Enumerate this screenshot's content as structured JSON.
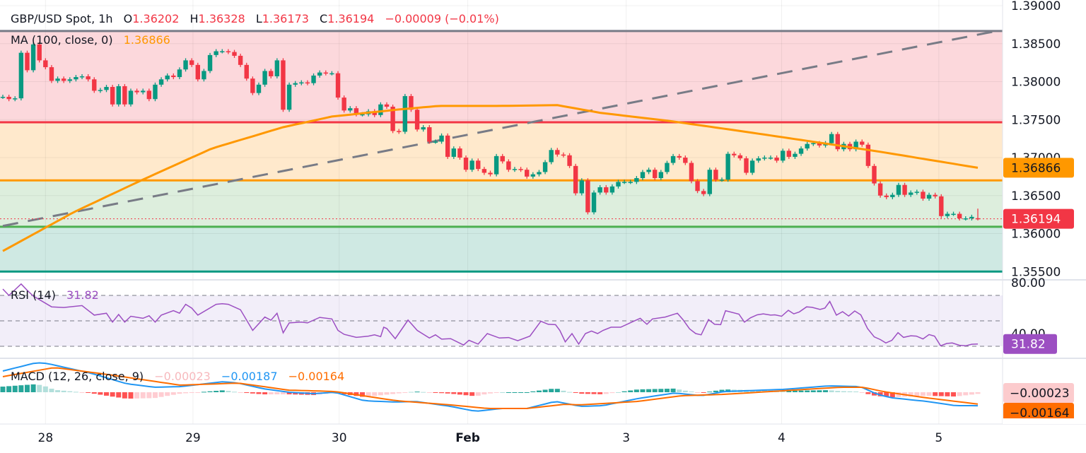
{
  "header": {
    "symbol": "GBP/USD Spot, 1h",
    "o_label": "O",
    "o": "1.36202",
    "h_label": "H",
    "h": "1.36328",
    "l_label": "L",
    "l": "1.36173",
    "c_label": "C",
    "c": "1.36194",
    "change": "−0.00009 (−0.01%)"
  },
  "ma_legend": {
    "label": "MA (100, close, 0)",
    "value": "1.36866"
  },
  "rsi_legend": {
    "label": "RSI (14)",
    "value": "31.82"
  },
  "macd_legend": {
    "label": "MACD (12, 26, close, 9)",
    "hist": "−0.00023",
    "macd": "−0.00187",
    "signal": "−0.00164"
  },
  "colors": {
    "up": "#089981",
    "down": "#f23645",
    "ma": "#ff9800",
    "trendline": "#787b86",
    "rsi": "#9c4fc2",
    "macd": "#2196f3",
    "signal": "#ff6d00",
    "zone_top": "#fcd8dc",
    "zone_mid_high": "#ffe9cc",
    "zone_mid_low": "#ddeedd",
    "zone_bottom": "#cfe9e3"
  },
  "chart_data": [
    {
      "type": "candlestick",
      "ylim": [
        1.353,
        1.3907
      ],
      "yticks": [
        "1.39000",
        "1.38500",
        "1.38000",
        "1.37500",
        "1.37000",
        "1.36500",
        "1.36000",
        "1.35500"
      ],
      "xticks": [
        {
          "label": "28",
          "index": 7
        },
        {
          "label": "29",
          "index": 31.2
        },
        {
          "label": "30",
          "index": 55.2
        },
        {
          "label": "Feb",
          "index": 76.3,
          "bold": true
        },
        {
          "label": "3",
          "index": 102.3
        },
        {
          "label": "4",
          "index": 127.8
        },
        {
          "label": "5",
          "index": 153.6
        }
      ],
      "closes": [
        1.378,
        1.3777,
        1.3778,
        1.3838,
        1.3815,
        1.3849,
        1.3828,
        1.3819,
        1.3801,
        1.3804,
        1.3801,
        1.3803,
        1.3806,
        1.3807,
        1.3803,
        1.3788,
        1.3789,
        1.3793,
        1.377,
        1.3794,
        1.377,
        1.3788,
        1.3786,
        1.3788,
        1.3777,
        1.3796,
        1.3803,
        1.3808,
        1.3806,
        1.3816,
        1.3828,
        1.3822,
        1.3803,
        1.3814,
        1.3835,
        1.384,
        1.384,
        1.3839,
        1.3834,
        1.3822,
        1.3804,
        1.3785,
        1.3796,
        1.3814,
        1.3807,
        1.3828,
        1.3763,
        1.3796,
        1.3798,
        1.3799,
        1.3798,
        1.3808,
        1.3812,
        1.3811,
        1.3811,
        1.3779,
        1.3762,
        1.3765,
        1.3757,
        1.3757,
        1.3761,
        1.3756,
        1.377,
        1.3767,
        1.3735,
        1.3734,
        1.3781,
        1.3763,
        1.3737,
        1.374,
        1.3721,
        1.3721,
        1.3729,
        1.3701,
        1.3712,
        1.37,
        1.3684,
        1.3696,
        1.3685,
        1.368,
        1.3678,
        1.3702,
        1.3695,
        1.3684,
        1.3685,
        1.3684,
        1.3675,
        1.3678,
        1.3681,
        1.3694,
        1.371,
        1.3704,
        1.3703,
        1.3689,
        1.3653,
        1.367,
        1.3628,
        1.3654,
        1.3661,
        1.3654,
        1.3662,
        1.3668,
        1.3668,
        1.3668,
        1.3673,
        1.3681,
        1.3684,
        1.3673,
        1.3681,
        1.3693,
        1.3702,
        1.37,
        1.3693,
        1.3669,
        1.3656,
        1.3652,
        1.3684,
        1.3671,
        1.3671,
        1.3705,
        1.3703,
        1.3699,
        1.368,
        1.3696,
        1.3699,
        1.37,
        1.37,
        1.3696,
        1.3709,
        1.3701,
        1.3705,
        1.3712,
        1.3718,
        1.3719,
        1.3716,
        1.3719,
        1.3731,
        1.3711,
        1.3718,
        1.3711,
        1.3721,
        1.3717,
        1.3689,
        1.3666,
        1.365,
        1.3648,
        1.3651,
        1.3664,
        1.3651,
        1.3654,
        1.3655,
        1.3646,
        1.3651,
        1.3649,
        1.3623,
        1.3626,
        1.3626,
        1.362,
        1.362,
        1.3622,
        1.36194
      ],
      "last_candle": {
        "open": 1.36202,
        "high": 1.36328,
        "low": 1.36173,
        "close": 1.36194
      },
      "ma100": [
        [
          0,
          1.3577
        ],
        [
          11.6,
          1.3628
        ],
        [
          22.7,
          1.367
        ],
        [
          34.3,
          1.3712
        ],
        [
          46,
          1.374
        ],
        [
          54,
          1.3754
        ],
        [
          64.5,
          1.3763
        ],
        [
          71.5,
          1.3768
        ],
        [
          81,
          1.3768
        ],
        [
          91,
          1.3769
        ],
        [
          98,
          1.3759
        ],
        [
          109.6,
          1.3748
        ],
        [
          121,
          1.3735
        ],
        [
          132.9,
          1.3721
        ],
        [
          144.5,
          1.3707
        ],
        [
          160,
          1.36866
        ]
      ],
      "trendline": [
        [
          0,
          1.361
        ],
        [
          163,
          1.38665
        ]
      ],
      "levels": [
        {
          "price": 1.38666,
          "color": "#787b86"
        },
        {
          "price": 1.37465,
          "color": "#f23645"
        },
        {
          "price": 1.367,
          "color": "#ff9800"
        },
        {
          "price": 1.3609,
          "color": "#4caf50"
        },
        {
          "price": 1.355,
          "color": "#089981"
        }
      ],
      "price_tags": [
        {
          "value": "1.36866",
          "price": 1.36866,
          "color": "#ff9800",
          "text_color": "#131722"
        },
        {
          "value": "1.36194",
          "price": 1.36194,
          "color": "#f23645",
          "text_color": "#ffffff"
        }
      ]
    },
    {
      "type": "line",
      "name": "RSI (14)",
      "ylim": [
        25,
        82
      ],
      "yticks": [
        "80.00",
        "40.00"
      ],
      "bands": [
        70,
        50,
        30
      ],
      "points": [
        [
          0,
          75
        ],
        [
          1,
          70
        ],
        [
          3,
          79
        ],
        [
          4,
          74
        ],
        [
          5,
          69.5
        ],
        [
          8,
          61
        ],
        [
          10,
          60.5
        ],
        [
          13,
          62
        ],
        [
          15,
          54.5
        ],
        [
          17,
          56
        ],
        [
          18,
          49
        ],
        [
          19,
          55
        ],
        [
          20,
          49
        ],
        [
          21,
          53.6
        ],
        [
          23,
          52
        ],
        [
          24,
          54
        ],
        [
          25,
          49
        ],
        [
          26,
          54.5
        ],
        [
          28,
          58
        ],
        [
          29,
          56
        ],
        [
          30,
          63
        ],
        [
          31,
          60
        ],
        [
          32,
          54.5
        ],
        [
          35,
          63
        ],
        [
          36,
          63.5
        ],
        [
          37,
          63
        ],
        [
          39,
          58.7
        ],
        [
          41,
          42.5
        ],
        [
          43,
          53
        ],
        [
          44,
          50.5
        ],
        [
          45,
          56
        ],
        [
          46,
          40.6
        ],
        [
          47,
          48.4
        ],
        [
          49,
          49
        ],
        [
          50,
          48.4
        ],
        [
          52,
          52.7
        ],
        [
          54,
          51.5
        ],
        [
          55,
          42.5
        ],
        [
          56,
          39.4
        ],
        [
          58,
          37
        ],
        [
          60,
          38
        ],
        [
          61,
          39
        ],
        [
          62,
          37.6
        ],
        [
          62.5,
          45
        ],
        [
          63,
          44
        ],
        [
          64.4,
          36
        ],
        [
          66.5,
          50.6
        ],
        [
          68,
          42.5
        ],
        [
          70,
          36.5
        ],
        [
          71,
          39
        ],
        [
          72,
          35.6
        ],
        [
          73.5,
          36
        ],
        [
          75.6,
          31
        ],
        [
          76.5,
          34.7
        ],
        [
          78,
          31.7
        ],
        [
          79.5,
          40
        ],
        [
          81.5,
          36.5
        ],
        [
          83,
          36.9
        ],
        [
          84.5,
          34.4
        ],
        [
          86.5,
          38
        ],
        [
          88.3,
          49.7
        ],
        [
          89.5,
          47.3
        ],
        [
          90.7,
          47
        ],
        [
          91.4,
          42.5
        ],
        [
          92.3,
          33.5
        ],
        [
          93.4,
          40
        ],
        [
          94.5,
          31.7
        ],
        [
          95.6,
          40
        ],
        [
          96.6,
          42
        ],
        [
          97.6,
          40
        ],
        [
          98.5,
          42.5
        ],
        [
          99.8,
          45
        ],
        [
          101.4,
          45
        ],
        [
          103.2,
          49
        ],
        [
          104.6,
          52
        ],
        [
          105.7,
          47.3
        ],
        [
          106.6,
          51.5
        ],
        [
          108.7,
          53
        ],
        [
          110.7,
          56
        ],
        [
          111.6,
          51
        ],
        [
          112.7,
          43.7
        ],
        [
          113.7,
          40
        ],
        [
          114.6,
          39
        ],
        [
          115.8,
          51
        ],
        [
          116.8,
          47.3
        ],
        [
          117.8,
          47
        ],
        [
          118.6,
          58
        ],
        [
          120.8,
          55.3
        ],
        [
          121.7,
          49
        ],
        [
          122.7,
          52.4
        ],
        [
          123.8,
          54.7
        ],
        [
          124.8,
          55.5
        ],
        [
          126,
          54.5
        ],
        [
          126.7,
          54.7
        ],
        [
          127.8,
          53.6
        ],
        [
          128.9,
          58.3
        ],
        [
          129.8,
          55.5
        ],
        [
          130.7,
          57
        ],
        [
          131.9,
          61
        ],
        [
          132.8,
          60.6
        ],
        [
          134.1,
          59
        ],
        [
          134.9,
          60
        ],
        [
          135.7,
          65.3
        ],
        [
          136.8,
          54.5
        ],
        [
          137.8,
          57.2
        ],
        [
          138.8,
          53.8
        ],
        [
          139.8,
          57.8
        ],
        [
          140.8,
          54.7
        ],
        [
          141.9,
          44
        ],
        [
          143,
          37.4
        ],
        [
          144,
          35.3
        ],
        [
          144.9,
          32.6
        ],
        [
          145.9,
          34.7
        ],
        [
          146.9,
          40.7
        ],
        [
          147.8,
          37
        ],
        [
          149,
          38.3
        ],
        [
          149.9,
          38
        ],
        [
          151,
          35.8
        ],
        [
          152,
          39.2
        ],
        [
          152.9,
          38
        ],
        [
          153.9,
          30.4
        ],
        [
          154.9,
          32.2
        ],
        [
          155.8,
          32.6
        ],
        [
          157,
          30.8
        ],
        [
          158,
          30.4
        ],
        [
          159,
          31.6
        ],
        [
          160,
          31.82
        ]
      ],
      "last_value": "31.82"
    },
    {
      "type": "macd",
      "name": "MACD (12, 26, close, 9)",
      "ylim": [
        -0.004,
        0.0045
      ],
      "macd": [
        [
          0,
          0.00294
        ],
        [
          5.5,
          0.0041
        ],
        [
          7.2,
          0.004
        ],
        [
          14.4,
          0.00265
        ],
        [
          20.3,
          0.00118
        ],
        [
          24.9,
          0.00069
        ],
        [
          29.1,
          0.00078
        ],
        [
          36.2,
          0.00147
        ],
        [
          38.6,
          0.00127
        ],
        [
          42.7,
          0.00049
        ],
        [
          46.9,
          0.0
        ],
        [
          51,
          -0.0002
        ],
        [
          54.5,
          0.0
        ],
        [
          59.3,
          -0.00118
        ],
        [
          64.6,
          -0.00137
        ],
        [
          67.6,
          -0.00127
        ],
        [
          73.5,
          -0.00196
        ],
        [
          77.6,
          -0.00265
        ],
        [
          81.8,
          -0.00225
        ],
        [
          86,
          -0.00225
        ],
        [
          90.7,
          -0.00127
        ],
        [
          94.8,
          -0.00196
        ],
        [
          98.5,
          -0.00186
        ],
        [
          104.2,
          -0.00088
        ],
        [
          110.3,
          -0.0001
        ],
        [
          114.6,
          -0.00049
        ],
        [
          118.4,
          0.0001
        ],
        [
          128,
          0.00039
        ],
        [
          135.5,
          0.00088
        ],
        [
          140.7,
          0.00078
        ],
        [
          143.5,
          -0.00029
        ],
        [
          145.9,
          -0.00078
        ],
        [
          151.6,
          -0.00127
        ],
        [
          156.3,
          -0.00186
        ],
        [
          160,
          -0.00187
        ]
      ],
      "signal": [
        [
          0,
          0.00216
        ],
        [
          8.5,
          0.00343
        ],
        [
          17.3,
          0.00245
        ],
        [
          29.1,
          0.00098
        ],
        [
          38.6,
          0.00127
        ],
        [
          46.9,
          0.00029
        ],
        [
          54.5,
          0.0001
        ],
        [
          64.6,
          -0.00118
        ],
        [
          73.5,
          -0.00176
        ],
        [
          79.5,
          -0.00225
        ],
        [
          86,
          -0.00225
        ],
        [
          92.3,
          -0.00167
        ],
        [
          94.8,
          -0.00176
        ],
        [
          104.2,
          -0.00127
        ],
        [
          111.4,
          -0.00049
        ],
        [
          118.4,
          -0.00029
        ],
        [
          128,
          0.0002
        ],
        [
          137.4,
          0.00069
        ],
        [
          141.2,
          0.00069
        ],
        [
          144.4,
          0.0001
        ],
        [
          151.6,
          -0.00078
        ],
        [
          160,
          -0.00164
        ]
      ],
      "tags": [
        {
          "value": "−0.00023",
          "color": "#fccbcd",
          "text_color": "#131722"
        },
        {
          "value": "−0.00164",
          "color": "#ff6d00",
          "text_color": "#131722"
        }
      ]
    }
  ]
}
